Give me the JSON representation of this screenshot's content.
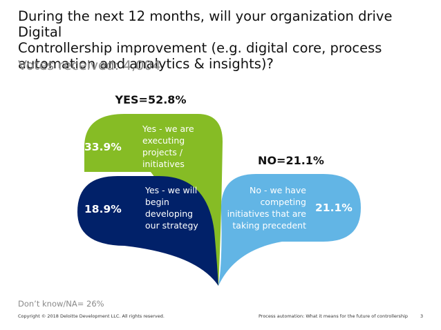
{
  "question": {
    "line1": "During the next 12 months, will your organization drive Digital",
    "line2": "Controllership improvement (e.g. digital core, process",
    "line3": "automation and analytics & insights)?"
  },
  "votes": {
    "label": "Votes received:",
    "value": "4,004"
  },
  "chart_data": {
    "type": "pie",
    "title": "",
    "groups": [
      {
        "label": "YES=52.8%",
        "value": 52.8,
        "segments": [
          0,
          1
        ]
      },
      {
        "label": "NO=21.1%",
        "value": 21.1,
        "segments": [
          2
        ]
      }
    ],
    "segments": [
      {
        "value": 33.9,
        "value_label": "33.9%",
        "text": [
          "Yes - we are",
          "executing",
          "projects /",
          "initiatives"
        ],
        "color": "#86bc25"
      },
      {
        "value": 18.9,
        "value_label": "18.9%",
        "text": [
          "Yes - we will",
          "begin",
          "developing",
          "our strategy"
        ],
        "color": "#012169"
      },
      {
        "value": 21.1,
        "value_label": "21.1%",
        "text": [
          "No - we have",
          "competing",
          "initiatives that are",
          "taking precedent"
        ],
        "color": "#62b5e5"
      }
    ]
  },
  "footer": {
    "note": "Don’t know/NA= 26%",
    "copyright": "Copyright © 2018 Deloitte Development LLC. All rights reserved.",
    "doc_title": "Process automation: What it means for the future of controllership",
    "page_number": "3"
  }
}
